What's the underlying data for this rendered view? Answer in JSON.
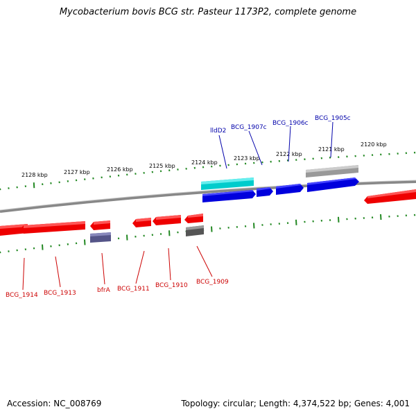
{
  "title": "Mycobacterium bovis BCG str. Pasteur 1173P2, complete genome",
  "accession": "Accession: NC_008769",
  "summary": "Topology: circular; Length: 4,374,522 bp; Genes: 4,001",
  "colors": {
    "forward_cds": "#0000dd",
    "reverse_cds": "#ee0000",
    "forward_gene": "#999999",
    "reverse_rna": "#555588",
    "reverse_gene": "#555555",
    "highlight_cds": "#00cccc",
    "backbone": "#888888",
    "ticks": "#228822",
    "forward_label": "#0000aa",
    "reverse_label": "#cc0000"
  },
  "ruler": {
    "labels": [
      "2128 kbp",
      "2127 kbp",
      "2126 kbp",
      "2125 kbp",
      "2124 kbp",
      "2123 kbp",
      "2122 kbp",
      "2121 kbp",
      "2120 kbp"
    ]
  },
  "forward_labels": [
    "lldD2",
    "BCG_1907c",
    "BCG_1906c",
    "BCG_1905c"
  ],
  "reverse_labels": [
    "BCG_1914",
    "BCG_1913",
    "bfrA",
    "BCG_1911",
    "BCG_1910",
    "BCG_1909"
  ]
}
